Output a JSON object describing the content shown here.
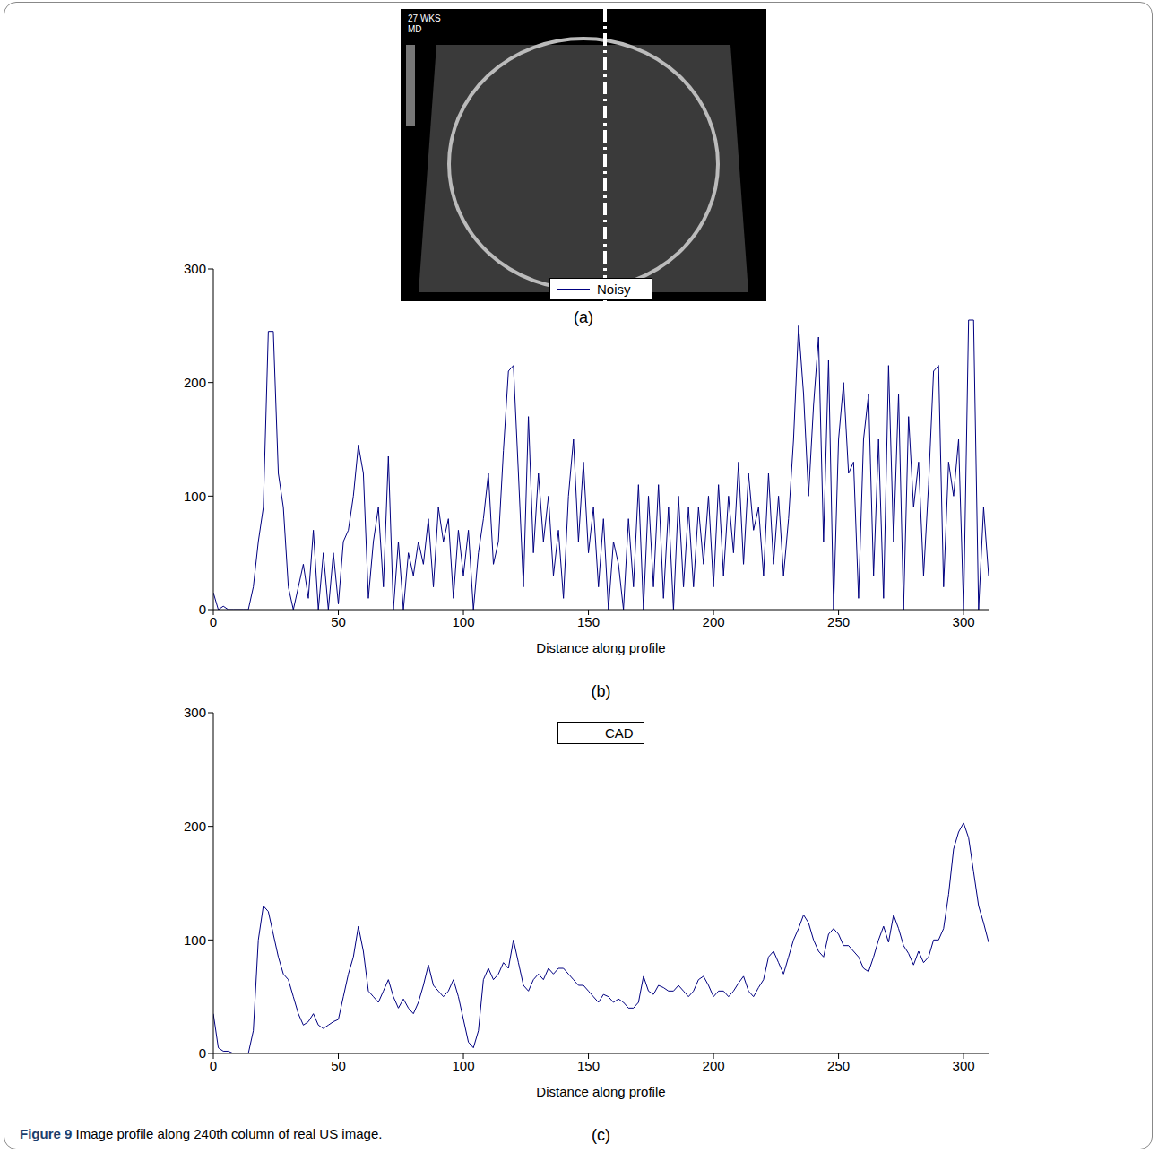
{
  "caption": {
    "label": "Figure 9",
    "text": "Image profile along 240th column of real US image."
  },
  "image": {
    "caption": "(a)",
    "texts": [
      "27 WKS",
      "MD"
    ]
  },
  "chart_data": [
    {
      "type": "line",
      "caption": "(b)",
      "x_label": "Distance along profile",
      "xlim": [
        0,
        310
      ],
      "xticks": [
        0,
        50,
        100,
        150,
        200,
        250,
        300
      ],
      "ylim": [
        0,
        300
      ],
      "yticks": [
        0,
        100,
        200,
        300
      ],
      "legend": "top",
      "x": [
        0,
        2,
        4,
        6,
        8,
        10,
        12,
        14,
        16,
        18,
        20,
        22,
        24,
        26,
        28,
        30,
        32,
        34,
        36,
        38,
        40,
        42,
        44,
        46,
        48,
        50,
        52,
        54,
        56,
        58,
        60,
        62,
        64,
        66,
        68,
        70,
        72,
        74,
        76,
        78,
        80,
        82,
        84,
        86,
        88,
        90,
        92,
        94,
        96,
        98,
        100,
        102,
        104,
        106,
        108,
        110,
        112,
        114,
        116,
        118,
        120,
        122,
        124,
        126,
        128,
        130,
        132,
        134,
        136,
        138,
        140,
        142,
        144,
        146,
        148,
        150,
        152,
        154,
        156,
        158,
        160,
        162,
        164,
        166,
        168,
        170,
        172,
        174,
        176,
        178,
        180,
        182,
        184,
        186,
        188,
        190,
        192,
        194,
        196,
        198,
        200,
        202,
        204,
        206,
        208,
        210,
        212,
        214,
        216,
        218,
        220,
        222,
        224,
        226,
        228,
        230,
        232,
        234,
        236,
        238,
        240,
        242,
        244,
        246,
        248,
        250,
        252,
        254,
        256,
        258,
        260,
        262,
        264,
        266,
        268,
        270,
        272,
        274,
        276,
        278,
        280,
        282,
        284,
        286,
        288,
        290,
        292,
        294,
        296,
        298,
        300,
        302,
        304,
        306,
        308,
        310
      ],
      "series": [
        {
          "name": "Noisy",
          "color": "#000080",
          "values": [
            15,
            0,
            3,
            0,
            0,
            0,
            0,
            0,
            20,
            60,
            90,
            245,
            245,
            120,
            90,
            20,
            0,
            20,
            40,
            10,
            70,
            0,
            50,
            0,
            50,
            5,
            60,
            70,
            100,
            145,
            120,
            10,
            60,
            90,
            20,
            135,
            0,
            60,
            0,
            50,
            30,
            60,
            40,
            80,
            20,
            90,
            60,
            80,
            10,
            70,
            30,
            70,
            0,
            50,
            80,
            120,
            40,
            60,
            140,
            210,
            215,
            120,
            20,
            170,
            50,
            120,
            60,
            100,
            30,
            70,
            10,
            100,
            150,
            60,
            130,
            50,
            90,
            20,
            80,
            0,
            60,
            40,
            0,
            80,
            20,
            110,
            0,
            100,
            20,
            110,
            10,
            90,
            0,
            100,
            20,
            90,
            20,
            90,
            40,
            100,
            20,
            110,
            30,
            100,
            50,
            130,
            40,
            120,
            70,
            90,
            30,
            120,
            40,
            100,
            30,
            80,
            150,
            250,
            190,
            100,
            180,
            240,
            60,
            220,
            0,
            150,
            200,
            120,
            130,
            10,
            150,
            190,
            30,
            150,
            10,
            215,
            60,
            190,
            0,
            170,
            90,
            130,
            30,
            110,
            210,
            215,
            20,
            130,
            100,
            150,
            0,
            255,
            255,
            0,
            90,
            30
          ]
        }
      ]
    },
    {
      "type": "line",
      "caption": "(c)",
      "x_label": "Distance along profile",
      "xlim": [
        0,
        310
      ],
      "xticks": [
        0,
        50,
        100,
        150,
        200,
        250,
        300
      ],
      "ylim": [
        0,
        300
      ],
      "yticks": [
        0,
        100,
        200,
        300
      ],
      "legend": "top",
      "x": [
        0,
        2,
        4,
        6,
        8,
        10,
        12,
        14,
        16,
        18,
        20,
        22,
        24,
        26,
        28,
        30,
        32,
        34,
        36,
        38,
        40,
        42,
        44,
        46,
        48,
        50,
        52,
        54,
        56,
        58,
        60,
        62,
        64,
        66,
        68,
        70,
        72,
        74,
        76,
        78,
        80,
        82,
        84,
        86,
        88,
        90,
        92,
        94,
        96,
        98,
        100,
        102,
        104,
        106,
        108,
        110,
        112,
        114,
        116,
        118,
        120,
        122,
        124,
        126,
        128,
        130,
        132,
        134,
        136,
        138,
        140,
        142,
        144,
        146,
        148,
        150,
        152,
        154,
        156,
        158,
        160,
        162,
        164,
        166,
        168,
        170,
        172,
        174,
        176,
        178,
        180,
        182,
        184,
        186,
        188,
        190,
        192,
        194,
        196,
        198,
        200,
        202,
        204,
        206,
        208,
        210,
        212,
        214,
        216,
        218,
        220,
        222,
        224,
        226,
        228,
        230,
        232,
        234,
        236,
        238,
        240,
        242,
        244,
        246,
        248,
        250,
        252,
        254,
        256,
        258,
        260,
        262,
        264,
        266,
        268,
        270,
        272,
        274,
        276,
        278,
        280,
        282,
        284,
        286,
        288,
        290,
        292,
        294,
        296,
        298,
        300,
        302,
        304,
        306,
        308,
        310
      ],
      "series": [
        {
          "name": "CAD",
          "color": "#000080",
          "values": [
            35,
            5,
            2,
            2,
            0,
            0,
            0,
            0,
            20,
            100,
            130,
            125,
            105,
            85,
            70,
            65,
            50,
            35,
            25,
            28,
            35,
            25,
            22,
            25,
            28,
            30,
            50,
            70,
            85,
            112,
            90,
            55,
            50,
            45,
            55,
            65,
            50,
            40,
            48,
            40,
            35,
            45,
            60,
            78,
            60,
            55,
            50,
            55,
            65,
            50,
            30,
            10,
            5,
            20,
            65,
            75,
            65,
            70,
            80,
            75,
            100,
            80,
            60,
            55,
            65,
            70,
            65,
            75,
            70,
            75,
            75,
            70,
            65,
            60,
            60,
            55,
            50,
            45,
            52,
            50,
            45,
            48,
            45,
            40,
            40,
            45,
            68,
            55,
            52,
            60,
            58,
            55,
            55,
            60,
            55,
            50,
            55,
            65,
            68,
            60,
            50,
            55,
            55,
            50,
            55,
            62,
            68,
            55,
            50,
            58,
            65,
            85,
            90,
            80,
            70,
            85,
            100,
            110,
            122,
            115,
            100,
            90,
            85,
            105,
            110,
            105,
            95,
            95,
            90,
            85,
            75,
            72,
            85,
            100,
            112,
            98,
            122,
            110,
            95,
            88,
            78,
            90,
            80,
            85,
            100,
            100,
            110,
            140,
            180,
            195,
            203,
            190,
            160,
            130,
            115,
            98
          ]
        }
      ]
    }
  ]
}
